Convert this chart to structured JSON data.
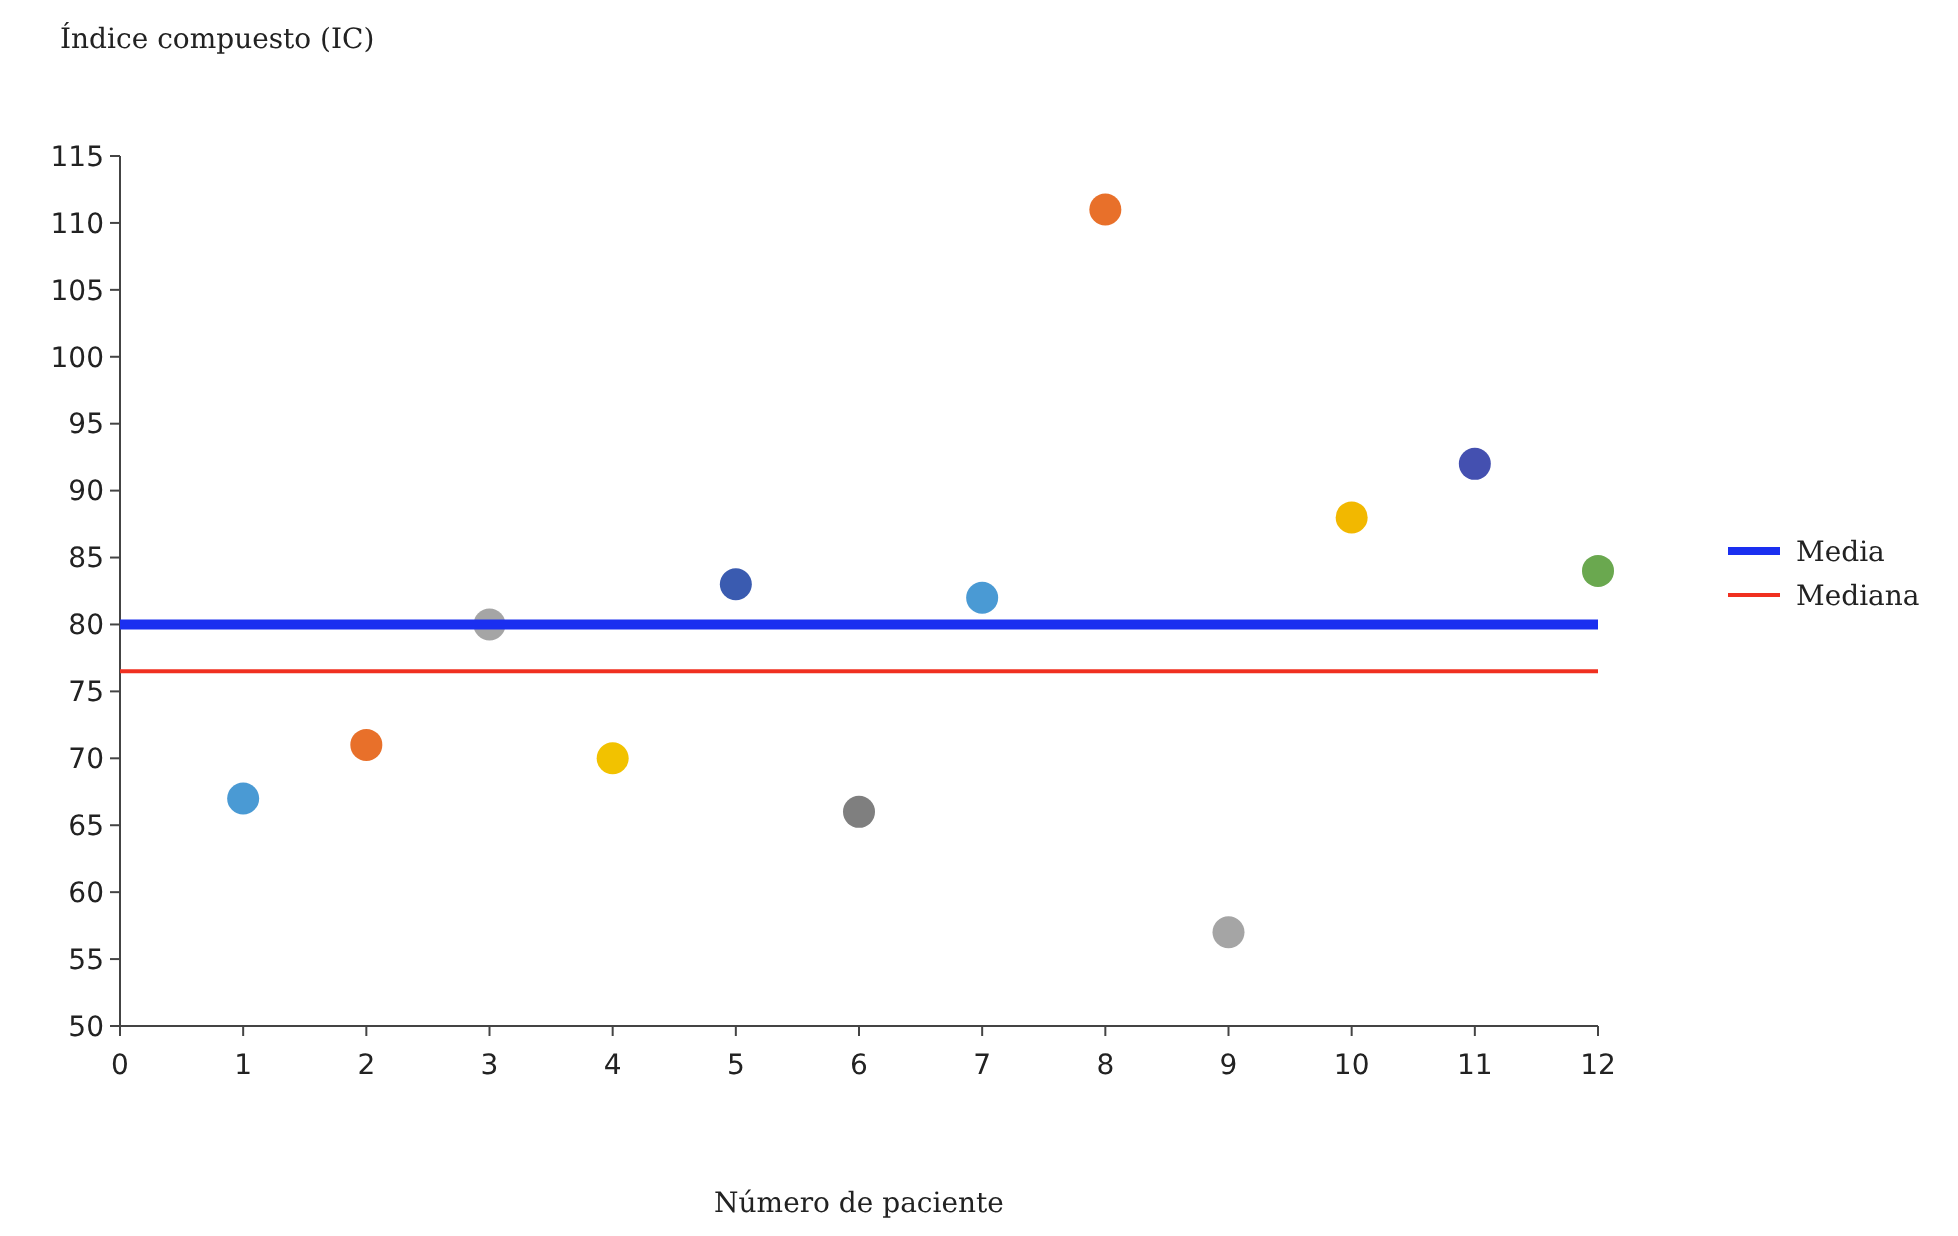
{
  "chart_data": {
    "type": "scatter",
    "xlabel": "Número de paciente",
    "ylabel": "Índice compuesto (IC)",
    "xlim": [
      0,
      12
    ],
    "xticks": [
      0,
      1,
      2,
      3,
      4,
      5,
      6,
      7,
      8,
      9,
      10,
      11,
      12
    ],
    "ylim": [
      50,
      115
    ],
    "yticks": [
      50,
      55,
      60,
      65,
      70,
      75,
      80,
      85,
      90,
      95,
      100,
      105,
      110,
      115
    ],
    "grid": false,
    "legend": "right",
    "series": [
      {
        "marker": "circle",
        "x": [
          1,
          2,
          3,
          4,
          5,
          6,
          7,
          8,
          9,
          10,
          11,
          12
        ],
        "values": [
          67,
          71,
          80,
          70,
          83,
          66,
          82,
          111,
          57,
          88,
          92,
          84
        ],
        "colors": [
          "#4a9ad4",
          "#e8702a",
          "#a5a5a5",
          "#f2c200",
          "#3a5bb0",
          "#7f7f7f",
          "#4a9ad4",
          "#e8702a",
          "#a5a5a5",
          "#f2b800",
          "#4450b0",
          "#6aa84f"
        ]
      },
      {
        "type": "line",
        "name": "Media",
        "color": "#1a2ff0",
        "x": [
          0,
          12
        ],
        "values": [
          80,
          80
        ],
        "line_style": "solid",
        "marker": "none"
      },
      {
        "type": "line",
        "name": "Mediana",
        "color": "#f03020",
        "x": [
          0,
          12
        ],
        "values": [
          76.5,
          76.5
        ],
        "line_style": "solid",
        "marker": "none"
      }
    ]
  }
}
